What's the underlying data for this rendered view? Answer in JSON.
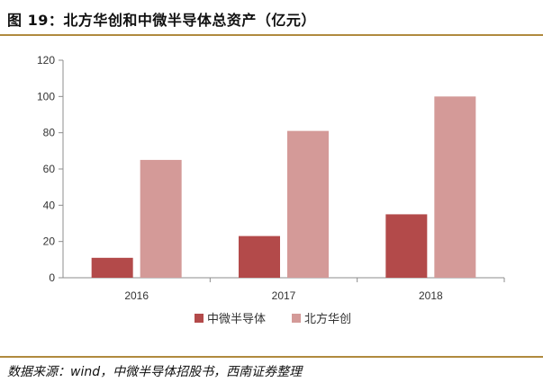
{
  "figure": {
    "title": "图 19：北方华创和中微半导体总资产（亿元）",
    "source": "数据来源：wind，中微半导体招股书，西南证券整理",
    "colors": {
      "rule": "#b08a3e"
    }
  },
  "chart_data": {
    "type": "bar",
    "title": "",
    "xlabel": "",
    "ylabel": "",
    "categories": [
      "2016",
      "2017",
      "2018"
    ],
    "series": [
      {
        "name": "中微半导体",
        "color": "#b34a4a",
        "values": [
          11,
          23,
          35
        ]
      },
      {
        "name": "北方华创",
        "color": "#d49a98",
        "values": [
          65,
          81,
          100
        ]
      }
    ],
    "ylim": [
      0,
      120
    ],
    "yticks": [
      0,
      20,
      40,
      60,
      80,
      100,
      120
    ],
    "grid": false,
    "legend": "bottom-center"
  }
}
